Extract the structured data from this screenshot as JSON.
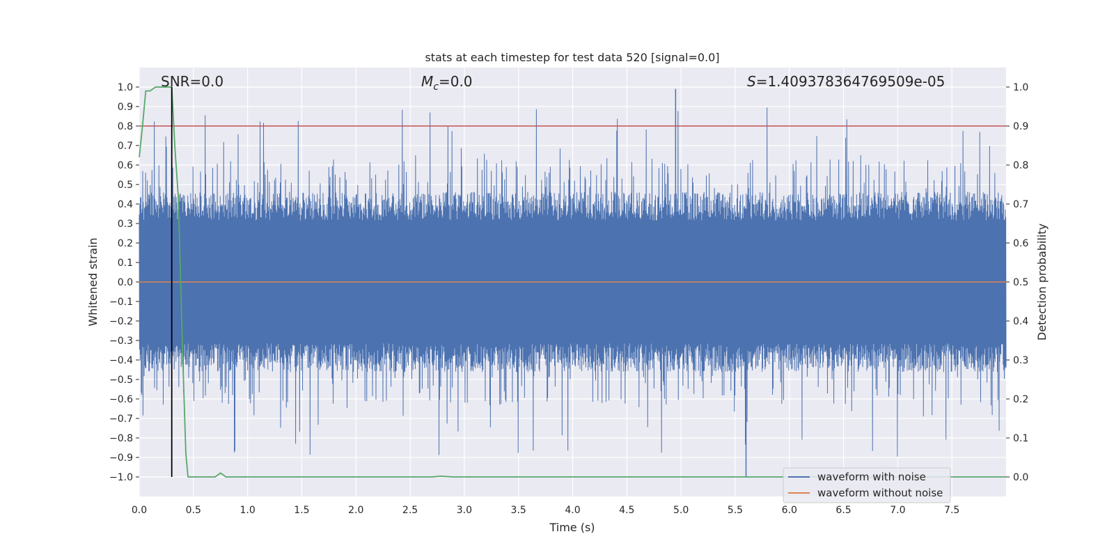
{
  "chart_data": {
    "type": "line",
    "title": "stats at each timestep for test data 520 [signal=0.0]",
    "xlabel": "Time (s)",
    "ylabel": "Whitened strain",
    "y2label": "Detection probability",
    "xlim": [
      0.0,
      8.0
    ],
    "ylim": [
      -1.1,
      1.1
    ],
    "y2lim": [
      -0.05,
      1.05
    ],
    "xticks": [
      "0.0",
      "0.5",
      "1.0",
      "1.5",
      "2.0",
      "2.5",
      "3.0",
      "3.5",
      "4.0",
      "4.5",
      "5.0",
      "5.5",
      "6.0",
      "6.5",
      "7.0",
      "7.5"
    ],
    "xtick_values": [
      0.0,
      0.5,
      1.0,
      1.5,
      2.0,
      2.5,
      3.0,
      3.5,
      4.0,
      4.5,
      5.0,
      5.5,
      6.0,
      6.5,
      7.0,
      7.5
    ],
    "yticks": [
      "1.0",
      "0.9",
      "0.8",
      "0.7",
      "0.6",
      "0.5",
      "0.4",
      "0.3",
      "0.2",
      "0.1",
      "0.0",
      "−0.1",
      "−0.2",
      "−0.3",
      "−0.4",
      "−0.5",
      "−0.6",
      "−0.7",
      "−0.8",
      "−0.9",
      "−1.0"
    ],
    "ytick_values": [
      1.0,
      0.9,
      0.8,
      0.7,
      0.6,
      0.5,
      0.4,
      0.3,
      0.2,
      0.1,
      0.0,
      -0.1,
      -0.2,
      -0.3,
      -0.4,
      -0.5,
      -0.6,
      -0.7,
      -0.8,
      -0.9,
      -1.0
    ],
    "y2ticks": [
      "1.0",
      "0.9",
      "0.8",
      "0.7",
      "0.6",
      "0.5",
      "0.4",
      "0.3",
      "0.2",
      "0.1",
      "0.0"
    ],
    "y2tick_values": [
      1.0,
      0.9,
      0.8,
      0.7,
      0.6,
      0.5,
      0.4,
      0.3,
      0.2,
      0.1,
      0.0
    ],
    "grid": true,
    "annotations": {
      "snr": "SNR=0.0",
      "mc_symbol": "M",
      "mc_sub": "c",
      "mc_rest": "=0.0",
      "s_symbol": "S",
      "s_rest": "=1.409378364769509e-05"
    },
    "threshold": {
      "y2": 0.9,
      "color": "#c44e52"
    },
    "marker_line": {
      "x": 0.3,
      "y_from": -1.0,
      "y_to": 1.0,
      "color": "#000000"
    },
    "series": [
      {
        "name": "waveform with noise",
        "color": "#4c72b0",
        "axis": "left",
        "kind": "noise",
        "samples": 3000,
        "core_amplitude": 0.42,
        "peak_max": 0.99,
        "peak_min": -1.0
      },
      {
        "name": "waveform without noise",
        "color": "#dd8452",
        "axis": "left",
        "x": [
          0.0,
          8.0
        ],
        "y": [
          0.0,
          0.0
        ]
      },
      {
        "name": "detection probability",
        "color": "#55a868",
        "axis": "right",
        "x": [
          0.0,
          0.03,
          0.06,
          0.1,
          0.15,
          0.2,
          0.25,
          0.3,
          0.33,
          0.36,
          0.4,
          0.43,
          0.45,
          0.7,
          0.75,
          0.8,
          0.9,
          2.7,
          2.78,
          2.9,
          8.0
        ],
        "y": [
          0.82,
          0.9,
          0.99,
          0.99,
          1.0,
          1.0,
          1.0,
          1.0,
          0.84,
          0.72,
          0.32,
          0.06,
          0.0,
          0.0,
          0.01,
          0.0,
          0.0,
          0.0,
          0.002,
          0.0,
          0.0
        ]
      }
    ],
    "legend": {
      "placement": "bottom-right",
      "entries": [
        "waveform with noise",
        "waveform without noise"
      ]
    }
  }
}
